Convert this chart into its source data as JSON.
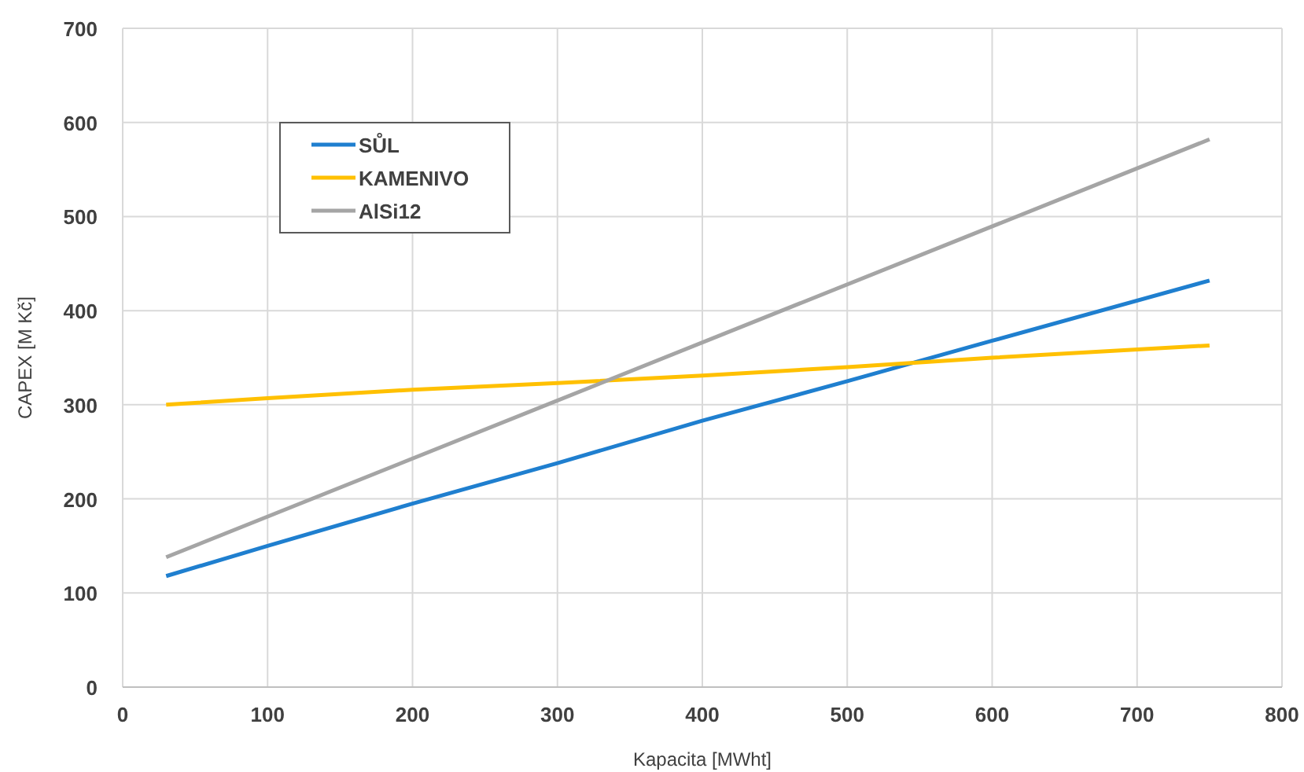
{
  "chart_data": {
    "type": "line",
    "xlabel": "Kapacita [MWht]",
    "ylabel": "CAPEX [M Kč]",
    "xlim": [
      0,
      800
    ],
    "xticks": [
      0,
      100,
      200,
      300,
      400,
      500,
      600,
      700,
      800
    ],
    "ylim": [
      0,
      700
    ],
    "yticks": [
      0,
      100,
      200,
      300,
      400,
      500,
      600,
      700
    ],
    "grid": true,
    "legend": "top left",
    "series": [
      {
        "name": "SŮL",
        "color": "#1f7fcf",
        "x": [
          30,
          100,
          200,
          300,
          400,
          500,
          600,
          750
        ],
        "values": [
          118,
          150,
          195,
          238,
          283,
          325,
          368,
          432
        ]
      },
      {
        "name": "KAMENIVO",
        "color": "#ffc000",
        "x": [
          30,
          100,
          200,
          300,
          400,
          500,
          600,
          750
        ],
        "values": [
          300,
          307,
          316,
          323,
          331,
          340,
          350,
          363
        ]
      },
      {
        "name": "AlSi12",
        "color": "#a5a5a5",
        "x": [
          30,
          750
        ],
        "values": [
          138,
          582
        ]
      }
    ]
  }
}
